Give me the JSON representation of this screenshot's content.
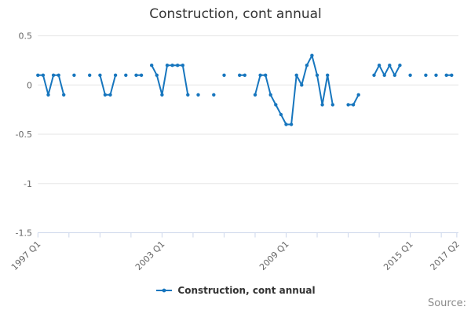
{
  "title": "Construction, cont annual",
  "legend": {
    "label": "Construction, cont annual"
  },
  "source_label": "Source:",
  "chart_data": {
    "type": "line",
    "title": "Construction, cont annual",
    "series_name": "Construction, cont annual",
    "series_color": "#1776BE",
    "categories": [
      "1997 Q1",
      "1997 Q2",
      "1997 Q3",
      "1997 Q4",
      "1998 Q1",
      "1998 Q2",
      "1998 Q3",
      "1998 Q4",
      "1999 Q1",
      "1999 Q2",
      "1999 Q3",
      "1999 Q4",
      "2000 Q1",
      "2000 Q2",
      "2000 Q3",
      "2000 Q4",
      "2001 Q1",
      "2001 Q2",
      "2001 Q3",
      "2001 Q4",
      "2002 Q1",
      "2002 Q2",
      "2002 Q3",
      "2002 Q4",
      "2003 Q1",
      "2003 Q2",
      "2003 Q3",
      "2003 Q4",
      "2004 Q1",
      "2004 Q2",
      "2004 Q3",
      "2004 Q4",
      "2005 Q1",
      "2005 Q2",
      "2005 Q3",
      "2005 Q4",
      "2006 Q1",
      "2006 Q2",
      "2006 Q3",
      "2006 Q4",
      "2007 Q1",
      "2007 Q2",
      "2007 Q3",
      "2007 Q4",
      "2008 Q1",
      "2008 Q2",
      "2008 Q3",
      "2008 Q4",
      "2009 Q1",
      "2009 Q2",
      "2009 Q3",
      "2009 Q4",
      "2010 Q1",
      "2010 Q2",
      "2010 Q3",
      "2010 Q4",
      "2011 Q1",
      "2011 Q2",
      "2011 Q3",
      "2011 Q4",
      "2012 Q1",
      "2012 Q2",
      "2012 Q3",
      "2012 Q4",
      "2013 Q1",
      "2013 Q2",
      "2013 Q3",
      "2013 Q4",
      "2014 Q1",
      "2014 Q2",
      "2014 Q3",
      "2014 Q4",
      "2015 Q1",
      "2015 Q2",
      "2015 Q3",
      "2015 Q4",
      "2016 Q1",
      "2016 Q2",
      "2016 Q3",
      "2016 Q4",
      "2017 Q1",
      "2017 Q2"
    ],
    "values": [
      0.1,
      0.1,
      -0.1,
      0.1,
      0.1,
      -0.1,
      null,
      0.1,
      null,
      null,
      0.1,
      null,
      0.1,
      -0.1,
      -0.1,
      0.1,
      null,
      0.1,
      null,
      0.1,
      0.1,
      null,
      0.2,
      0.1,
      -0.1,
      0.2,
      0.2,
      0.2,
      0.2,
      -0.1,
      null,
      -0.1,
      null,
      null,
      -0.1,
      null,
      0.1,
      null,
      null,
      0.1,
      0.1,
      null,
      -0.1,
      0.1,
      0.1,
      -0.1,
      -0.2,
      -0.3,
      -0.4,
      -0.4,
      0.1,
      0.0,
      0.2,
      0.3,
      0.1,
      -0.2,
      0.1,
      -0.2,
      null,
      null,
      -0.2,
      -0.2,
      -0.1,
      null,
      null,
      0.1,
      0.2,
      0.1,
      0.2,
      0.1,
      0.2,
      null,
      0.1,
      null,
      null,
      0.1,
      null,
      0.1,
      null,
      0.1,
      0.1,
      null
    ],
    "ylim": [
      -1.5,
      0.5
    ],
    "y_ticks": [
      0.5,
      0,
      -0.5,
      -1,
      -1.5
    ],
    "y_tick_labels": [
      "0.5",
      "0",
      "-0.5",
      "-1",
      "-1.5"
    ],
    "x_tick_every_quarters": 6,
    "x_labeled_ticks": [
      {
        "index": 0,
        "label": "1997 Q1"
      },
      {
        "index": 24,
        "label": "2003 Q1"
      },
      {
        "index": 48,
        "label": "2009 Q1"
      },
      {
        "index": 72,
        "label": "2015 Q1"
      },
      {
        "index": 81,
        "label": "2017 Q2"
      }
    ],
    "grid_color": "#e6e6e6",
    "axis_line_color": "#ccd6eb",
    "tick_label_color": "#666666",
    "legend_position": "bottom-center"
  }
}
